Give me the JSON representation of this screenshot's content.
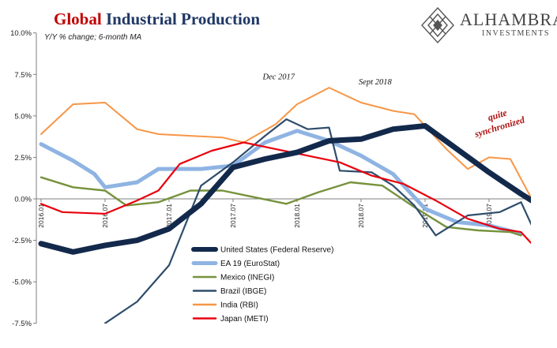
{
  "header": {
    "title_part1": "Global",
    "title_part2": "Industrial Production",
    "subtitle": "Y/Y % change; 6-month MA"
  },
  "logo": {
    "name": "ALHAMBRA",
    "sub": "INVESTMENTS",
    "icon": "diamond-lattice-logo"
  },
  "chart_data": {
    "type": "line",
    "title": "Global Industrial Production",
    "subtitle": "Y/Y % change; 6-month MA",
    "x_tick_labels": [
      "2016.01",
      "2016.07",
      "2017.01",
      "2017.07",
      "2018.01",
      "2018.07",
      "2019.01",
      "2019.07"
    ],
    "y_tick_labels": [
      "10.0%",
      "7.5%",
      "5.0%",
      "2.5%",
      "0.0%",
      "-2.5%",
      "-5.0%",
      "-7.5%"
    ],
    "ylim": [
      -7.5,
      10
    ],
    "grid": false,
    "legend_position": "bottom-center",
    "series": [
      {
        "name": "United States (Federal Reserve)",
        "color": "#13294b",
        "values": [
          [
            "2016-01",
            -2.7
          ],
          [
            "2016-04",
            -3.2
          ],
          [
            "2016-07",
            -2.8
          ],
          [
            "2016-10",
            -2.5
          ],
          [
            "2017-01",
            -1.8
          ],
          [
            "2017-04",
            -0.3
          ],
          [
            "2017-07",
            1.9
          ],
          [
            "2017-10",
            2.4
          ],
          [
            "2018-01",
            2.8
          ],
          [
            "2018-04",
            3.5
          ],
          [
            "2018-07",
            3.6
          ],
          [
            "2018-10",
            4.2
          ],
          [
            "2019-01",
            4.4
          ],
          [
            "2019-04",
            3.0
          ],
          [
            "2019-07",
            1.6
          ],
          [
            "2019-10",
            0.3
          ],
          [
            "2019-11",
            -0.1
          ]
        ]
      },
      {
        "name": "EA 19 (EuroStat)",
        "color": "#8fb4e3",
        "values": [
          [
            "2016-01",
            3.3
          ],
          [
            "2016-04",
            2.3
          ],
          [
            "2016-06",
            1.5
          ],
          [
            "2016-07",
            0.7
          ],
          [
            "2016-10",
            1.0
          ],
          [
            "2016-12",
            1.8
          ],
          [
            "2017-04",
            1.8
          ],
          [
            "2017-07",
            2.0
          ],
          [
            "2017-10",
            3.4
          ],
          [
            "2018-01",
            4.1
          ],
          [
            "2018-04",
            3.5
          ],
          [
            "2018-07",
            2.6
          ],
          [
            "2018-10",
            1.5
          ],
          [
            "2019-01",
            -0.6
          ],
          [
            "2019-04",
            -1.4
          ],
          [
            "2019-07",
            -1.6
          ],
          [
            "2019-10",
            -2.1
          ]
        ]
      },
      {
        "name": "Mexico (INEGI)",
        "color": "#76923c",
        "values": [
          [
            "2016-01",
            1.3
          ],
          [
            "2016-04",
            0.7
          ],
          [
            "2016-07",
            0.5
          ],
          [
            "2016-09",
            -0.4
          ],
          [
            "2016-12",
            -0.2
          ],
          [
            "2017-03",
            0.5
          ],
          [
            "2017-06",
            0.5
          ],
          [
            "2017-09",
            0.1
          ],
          [
            "2017-12",
            -0.3
          ],
          [
            "2018-03",
            0.4
          ],
          [
            "2018-06",
            1.0
          ],
          [
            "2018-09",
            0.8
          ],
          [
            "2018-12",
            -0.5
          ],
          [
            "2019-03",
            -1.7
          ],
          [
            "2019-06",
            -1.9
          ],
          [
            "2019-09",
            -2.0
          ],
          [
            "2019-10",
            -2.2
          ]
        ]
      },
      {
        "name": "Brazil (IBGE)",
        "color": "#2e4d6b",
        "values": [
          [
            "2016-07",
            -7.5
          ],
          [
            "2016-10",
            -6.2
          ],
          [
            "2017-01",
            -4.0
          ],
          [
            "2017-04",
            0.8
          ],
          [
            "2017-07",
            2.2
          ],
          [
            "2017-10",
            3.8
          ],
          [
            "2017-12",
            4.8
          ],
          [
            "2018-02",
            4.2
          ],
          [
            "2018-04",
            4.3
          ],
          [
            "2018-05",
            1.7
          ],
          [
            "2018-08",
            1.6
          ],
          [
            "2018-10",
            0.8
          ],
          [
            "2018-12",
            -0.4
          ],
          [
            "2019-02",
            -2.2
          ],
          [
            "2019-05",
            -1.0
          ],
          [
            "2019-08",
            -0.8
          ],
          [
            "2019-10",
            -0.2
          ],
          [
            "2019-11",
            -1.6
          ]
        ]
      },
      {
        "name": "India (RBI)",
        "color": "#f79646",
        "values": [
          [
            "2016-01",
            3.9
          ],
          [
            "2016-04",
            5.7
          ],
          [
            "2016-07",
            5.8
          ],
          [
            "2016-10",
            4.2
          ],
          [
            "2016-12",
            3.9
          ],
          [
            "2017-03",
            3.8
          ],
          [
            "2017-06",
            3.7
          ],
          [
            "2017-08",
            3.4
          ],
          [
            "2017-11",
            4.5
          ],
          [
            "2018-01",
            5.7
          ],
          [
            "2018-04",
            6.7
          ],
          [
            "2018-07",
            5.8
          ],
          [
            "2018-10",
            5.3
          ],
          [
            "2018-12",
            5.1
          ],
          [
            "2019-03",
            3.0
          ],
          [
            "2019-05",
            1.8
          ],
          [
            "2019-07",
            2.5
          ],
          [
            "2019-09",
            2.4
          ],
          [
            "2019-11",
            0.0
          ]
        ]
      },
      {
        "name": "Japan (METI)",
        "color": "#e8000d",
        "values": [
          [
            "2016-01",
            -0.3
          ],
          [
            "2016-03",
            -0.8
          ],
          [
            "2016-07",
            -0.9
          ],
          [
            "2016-10",
            -0.1
          ],
          [
            "2016-12",
            0.5
          ],
          [
            "2017-02",
            2.1
          ],
          [
            "2017-05",
            2.9
          ],
          [
            "2017-08",
            3.4
          ],
          [
            "2017-11",
            3.0
          ],
          [
            "2018-02",
            2.6
          ],
          [
            "2018-05",
            2.2
          ],
          [
            "2018-08",
            1.4
          ],
          [
            "2018-11",
            0.9
          ],
          [
            "2019-02",
            -0.1
          ],
          [
            "2019-05",
            -1.2
          ],
          [
            "2019-08",
            -1.8
          ],
          [
            "2019-10",
            -2.0
          ],
          [
            "2019-11",
            -2.7
          ]
        ]
      }
    ],
    "annotations": [
      {
        "text": "Dec 2017",
        "x": "2017-12",
        "y": 7.2,
        "color": "#111111"
      },
      {
        "text": "Sept 2018",
        "x": "2018-09",
        "y": 6.9,
        "color": "#111111"
      },
      {
        "text": "quite synchronized",
        "lines": [
          "quite",
          "synchronized"
        ],
        "x": "2019-06",
        "y": 4.5,
        "color": "#b01010"
      }
    ]
  }
}
